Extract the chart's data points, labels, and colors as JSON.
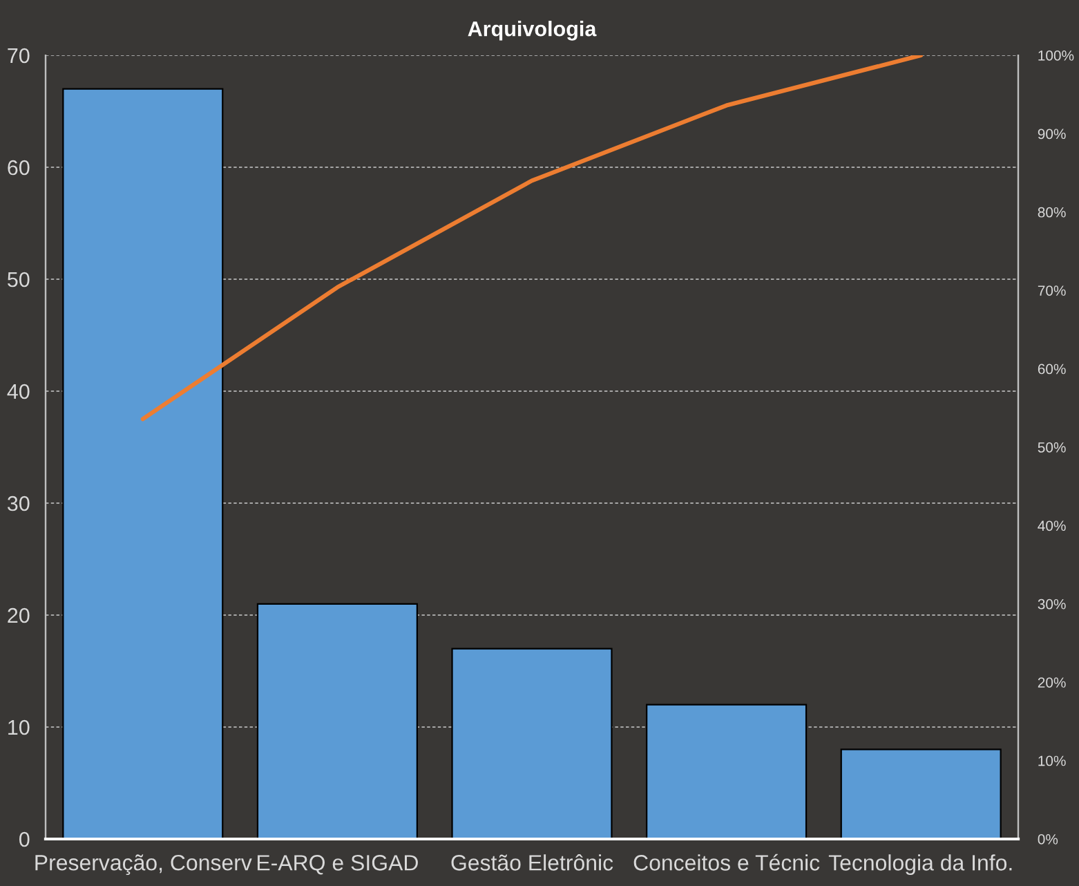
{
  "chart_data": {
    "type": "bar",
    "title": "Arquivologia",
    "categories": [
      "Preservação, Conserv",
      "E-ARQ e SIGAD",
      "Gestão Eletrônic",
      "Conceitos e Técnic",
      "Tecnologia da Info."
    ],
    "series": [
      {
        "color": "#5b9bd5",
        "values": [
          67,
          21,
          17,
          12,
          8
        ]
      },
      {
        "type": "line",
        "axis": "y2",
        "color": "#ed7d31",
        "values": [
          53.6,
          70.4,
          84,
          93.6,
          100
        ]
      }
    ],
    "ylim": [
      0,
      70
    ],
    "yticks": [
      0,
      10,
      20,
      30,
      40,
      50,
      60,
      70
    ],
    "y2lim": [
      0,
      100
    ],
    "y2ticks": [
      {
        "value": 0,
        "label": "0%"
      },
      {
        "value": 10,
        "label": "10%"
      },
      {
        "value": 20,
        "label": "20%"
      },
      {
        "value": 30,
        "label": "30%"
      },
      {
        "value": 40,
        "label": "40%"
      },
      {
        "value": 50,
        "label": "50%"
      },
      {
        "value": 60,
        "label": "60%"
      },
      {
        "value": 70,
        "label": "70%"
      },
      {
        "value": 80,
        "label": "80%"
      },
      {
        "value": 90,
        "label": "90%"
      },
      {
        "value": 100,
        "label": "100%"
      }
    ],
    "grid": "y"
  }
}
